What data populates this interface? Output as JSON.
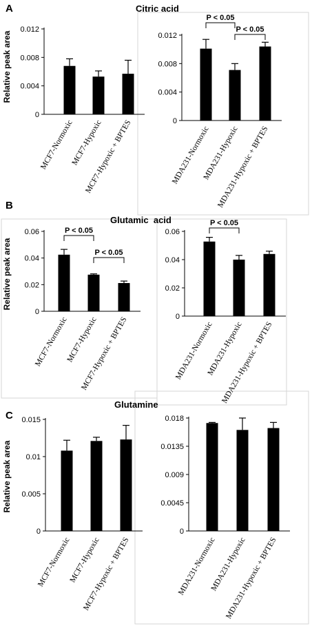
{
  "panels": [
    {
      "letter": "A",
      "title": "Citric acid"
    },
    {
      "letter": "B",
      "title": "Glutamic  acid"
    },
    {
      "letter": "C",
      "title": "Glutamine"
    }
  ],
  "ylabel": "Relative peak area",
  "chart_data": [
    {
      "type": "bar",
      "panel": "A",
      "categories": [
        "MCF7-Normoxic",
        "MCF7-Hypoxic",
        "MCF7-Hypoxic + BPTES"
      ],
      "values": [
        0.0068,
        0.0053,
        0.0057
      ],
      "errors": [
        0.001,
        0.0008,
        0.0019
      ],
      "ylim": [
        0,
        0.012
      ],
      "yticks": [
        "0",
        "0.004",
        "0.008",
        "0.012"
      ],
      "ytick_values": [
        0,
        0.004,
        0.008,
        0.012
      ],
      "ylabel": "Relative peak area",
      "comparisons": []
    },
    {
      "type": "bar",
      "panel": "A",
      "categories": [
        "MDA231-Normoxic",
        "MDA231-Hypoxic",
        "MDA231-Hypoxic + BPTES"
      ],
      "values": [
        0.0101,
        0.0071,
        0.0104
      ],
      "errors": [
        0.0013,
        0.0009,
        0.0006
      ],
      "ylim": [
        0,
        0.012
      ],
      "yticks": [
        "0",
        "0.004",
        "0.008",
        "0.012"
      ],
      "ytick_values": [
        0,
        0.004,
        0.008,
        0.012
      ],
      "comparisons": [
        {
          "from": 0,
          "to": 1,
          "label": "P < 0.05"
        },
        {
          "from": 1,
          "to": 2,
          "label": "P < 0.05"
        }
      ]
    },
    {
      "type": "bar",
      "panel": "B",
      "categories": [
        "MCF7-Normoxic",
        "MCF7-Hypoxic",
        "MCF7-Hypoxic + BPTES"
      ],
      "values": [
        0.0425,
        0.0275,
        0.0212
      ],
      "errors": [
        0.004,
        0.0006,
        0.0015
      ],
      "ylim": [
        0,
        0.06
      ],
      "yticks": [
        "0",
        "0.02",
        "0.04",
        "0.06"
      ],
      "ytick_values": [
        0,
        0.02,
        0.04,
        0.06
      ],
      "ylabel": "Relative peak area",
      "comparisons": [
        {
          "from": 0,
          "to": 1,
          "label": "P < 0.05"
        },
        {
          "from": 1,
          "to": 2,
          "label": "P < 0.05"
        }
      ]
    },
    {
      "type": "bar",
      "panel": "B",
      "categories": [
        "MDA231-Normoxic",
        "MDA231-Hypoxic",
        "MDA231-Hypoxic + BPTES"
      ],
      "values": [
        0.0528,
        0.04,
        0.044
      ],
      "errors": [
        0.003,
        0.003,
        0.002
      ],
      "ylim": [
        0,
        0.06
      ],
      "yticks": [
        "0",
        "0.02",
        "0.04",
        "0.06"
      ],
      "ytick_values": [
        0,
        0.02,
        0.04,
        0.06
      ],
      "comparisons": [
        {
          "from": 0,
          "to": 1,
          "label": "P < 0.05"
        }
      ]
    },
    {
      "type": "bar",
      "panel": "C",
      "categories": [
        "MCF7-Normoxic",
        "MCF7-Hypoxic",
        "MCF7-Hypoxic + BPTES"
      ],
      "values": [
        0.0108,
        0.0121,
        0.0123
      ],
      "errors": [
        0.0014,
        0.0005,
        0.0019
      ],
      "ylim": [
        0,
        0.015
      ],
      "yticks": [
        "0",
        "0.005",
        "0.01",
        "0.015"
      ],
      "ytick_values": [
        0,
        0.005,
        0.01,
        0.015
      ],
      "ylabel": "Relative peak area",
      "comparisons": []
    },
    {
      "type": "bar",
      "panel": "C",
      "categories": [
        "MDA231-Normoxic",
        "MDA231-Hypoxic",
        "MDA231-Hypoxic + BPTES"
      ],
      "values": [
        0.0172,
        0.0161,
        0.0164
      ],
      "errors": [
        0.0001,
        0.0019,
        0.0009
      ],
      "ylim": [
        0,
        0.018
      ],
      "yticks": [
        "0",
        "0.0045",
        "0.009",
        "0.0135",
        "0.018"
      ],
      "ytick_values": [
        0,
        0.0045,
        0.009,
        0.0135,
        0.018
      ],
      "comparisons": []
    }
  ],
  "colors": {
    "bar": "#000000",
    "axis": "#000000",
    "frame": "#d6d6d6",
    "background": "#ffffff"
  }
}
